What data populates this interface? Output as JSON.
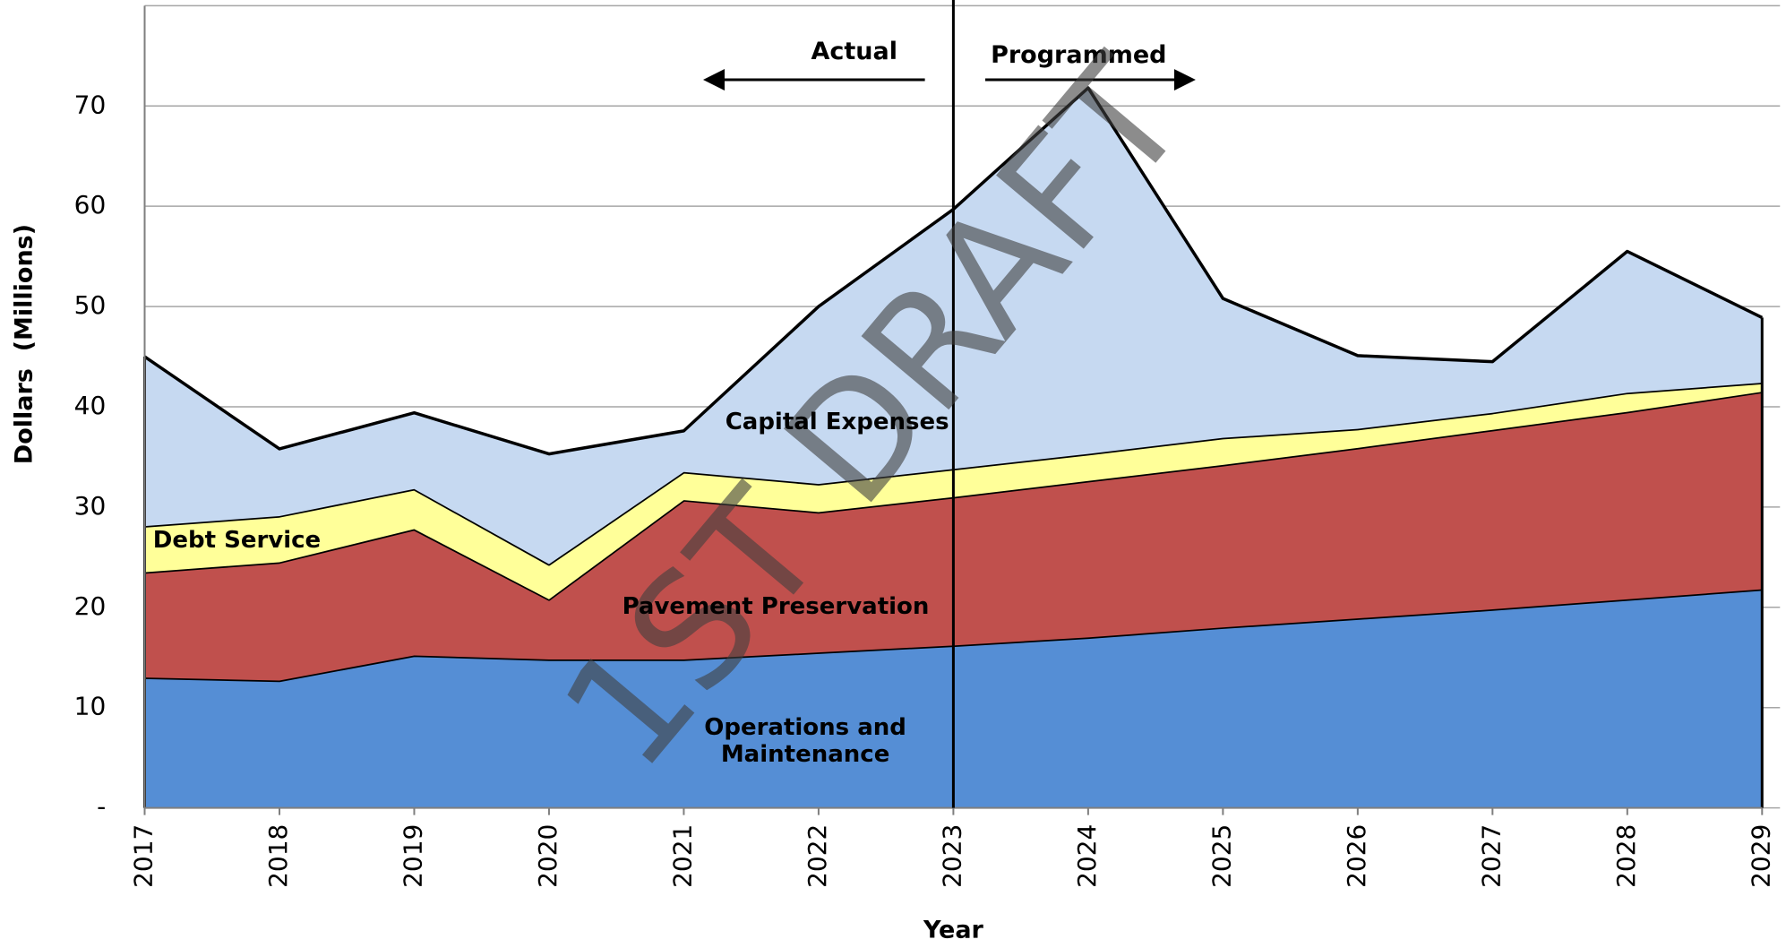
{
  "chart_data": {
    "type": "stacked_area",
    "xlabel": "Year",
    "ylabel": "Dollars  (Millions)",
    "categories": [
      "2017",
      "2018",
      "2019",
      "2020",
      "2021",
      "2022",
      "2023",
      "2024",
      "2025",
      "2026",
      "2027",
      "2028",
      "2029"
    ],
    "series": [
      {
        "name": "Operations and Maintenance",
        "color": "#558ed5",
        "values": [
          13,
          12.7,
          15.2,
          14.8,
          14.8,
          15.5,
          16.2,
          17,
          18,
          18.9,
          19.8,
          20.8,
          21.8
        ]
      },
      {
        "name": "Pavement Preservation",
        "color": "#c0504d",
        "values": [
          10.5,
          11.8,
          12.6,
          6.0,
          15.9,
          14.0,
          14.8,
          15.6,
          16.2,
          17.0,
          17.9,
          18.7,
          19.7
        ]
      },
      {
        "name": "Debt Service",
        "color": "#ffff99",
        "values": [
          4.6,
          4.6,
          4.0,
          3.5,
          2.8,
          2.8,
          2.8,
          2.7,
          2.7,
          1.9,
          1.7,
          1.9,
          0.9
        ]
      },
      {
        "name": "Capital Expenses",
        "color": "#c6d9f1",
        "values": [
          16.9,
          6.7,
          7.6,
          11.0,
          4.1,
          17.7,
          25.9,
          36.5,
          13.9,
          7.3,
          5.1,
          14.1,
          6.5
        ]
      }
    ],
    "ylim": [
      0,
      80
    ],
    "yticks": [
      {
        "value": 0,
        "label": "-"
      },
      10,
      20,
      30,
      40,
      50,
      60,
      70
    ],
    "grid": true,
    "divider": "2023",
    "annotations": {
      "left": "Actual",
      "right": "Programmed",
      "watermark": "1ST DRAFT"
    }
  }
}
